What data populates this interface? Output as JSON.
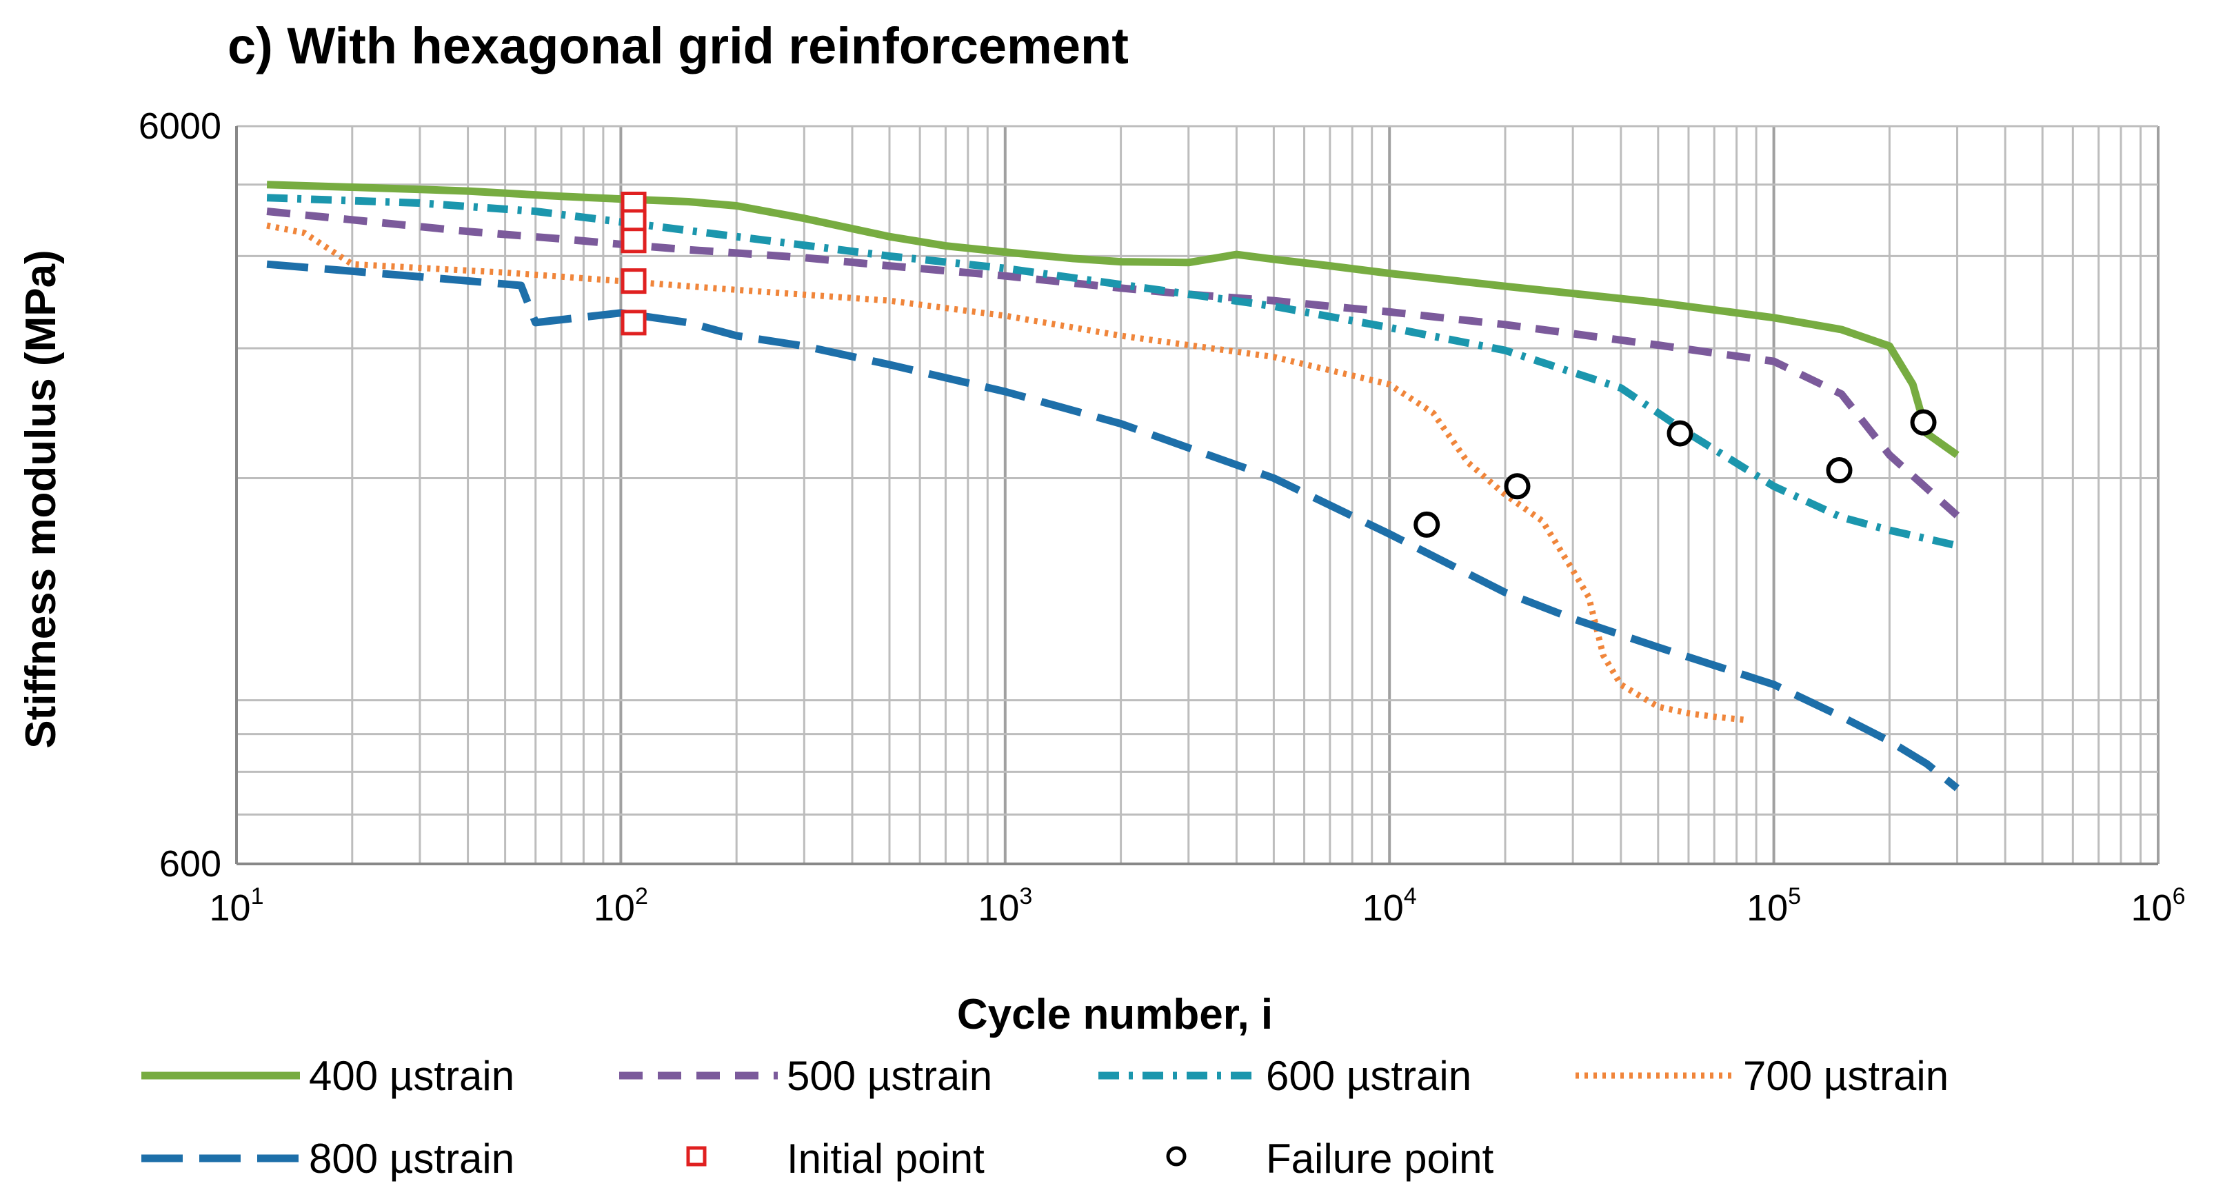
{
  "chart_data": {
    "type": "line",
    "title": "c) With hexagonal grid reinforcement",
    "xlabel": "Cycle number, i",
    "ylabel": "Stiffness modulus (MPa)",
    "xscale": "log",
    "yscale": "log",
    "xlim": [
      10,
      1000000
    ],
    "ylim": [
      600,
      6000
    ],
    "grid": true,
    "x_ticks": [
      {
        "base": "10",
        "exp": "1",
        "value": 10
      },
      {
        "base": "10",
        "exp": "2",
        "value": 100
      },
      {
        "base": "10",
        "exp": "3",
        "value": 1000
      },
      {
        "base": "10",
        "exp": "4",
        "value": 10000
      },
      {
        "base": "10",
        "exp": "5",
        "value": 100000
      },
      {
        "base": "10",
        "exp": "6",
        "value": 1000000
      }
    ],
    "y_ticks": [
      {
        "label": "600",
        "value": 600
      },
      {
        "label": "6000",
        "value": 6000
      }
    ],
    "legend_position": "bottom",
    "series": [
      {
        "name": "400 µstrain",
        "color": "#77ac41",
        "dash": "solid",
        "x": [
          12,
          20,
          40,
          70,
          100,
          150,
          200,
          300,
          500,
          700,
          1000,
          1500,
          2000,
          3000,
          4000,
          5000,
          7000,
          10000,
          20000,
          50000,
          100000,
          150000,
          200000,
          230000,
          250000,
          300000
        ],
        "y": [
          5000,
          4960,
          4900,
          4820,
          4780,
          4740,
          4680,
          4500,
          4250,
          4130,
          4050,
          3970,
          3930,
          3920,
          4020,
          3960,
          3880,
          3790,
          3640,
          3460,
          3300,
          3180,
          3020,
          2680,
          2300,
          2150
        ]
      },
      {
        "name": "500 µstrain",
        "color": "#7b5a9b",
        "dash": "dash",
        "x": [
          12,
          20,
          40,
          70,
          100,
          150,
          300,
          500,
          1000,
          2000,
          3000,
          5000,
          7000,
          10000,
          20000,
          50000,
          100000,
          150000,
          200000,
          300000
        ],
        "y": [
          4600,
          4480,
          4320,
          4220,
          4150,
          4080,
          3980,
          3880,
          3760,
          3620,
          3550,
          3480,
          3420,
          3360,
          3230,
          3030,
          2880,
          2600,
          2150,
          1780
        ]
      },
      {
        "name": "600 µstrain",
        "color": "#1b96ad",
        "dash": "dash-dot",
        "x": [
          12,
          30,
          60,
          100,
          200,
          500,
          1000,
          2000,
          5000,
          10000,
          20000,
          40000,
          60000,
          100000,
          150000,
          200000,
          300000
        ],
        "y": [
          4800,
          4720,
          4600,
          4450,
          4250,
          4000,
          3850,
          3660,
          3420,
          3200,
          2980,
          2650,
          2300,
          1950,
          1770,
          1700,
          1620
        ]
      },
      {
        "name": "700 µstrain",
        "color": "#f0853a",
        "dash": "dot",
        "x": [
          12,
          15,
          20,
          50,
          100,
          200,
          500,
          1000,
          2000,
          5000,
          10000,
          13000,
          16000,
          20000,
          25000,
          30000,
          33000,
          36000,
          40000,
          50000,
          60000,
          70000,
          85000
        ],
        "y": [
          4400,
          4300,
          3900,
          3800,
          3700,
          3600,
          3480,
          3320,
          3120,
          2920,
          2680,
          2450,
          2100,
          1900,
          1750,
          1500,
          1380,
          1150,
          1050,
          980,
          960,
          950,
          940
        ]
      },
      {
        "name": "800 µstrain",
        "color": "#1d6fa9",
        "dash": "longdash",
        "x": [
          12,
          30,
          55,
          60,
          100,
          150,
          200,
          300,
          500,
          1000,
          2000,
          5000,
          10000,
          20000,
          30000,
          50000,
          100000,
          150000,
          200000,
          250000,
          300000
        ],
        "y": [
          3900,
          3750,
          3650,
          3250,
          3350,
          3250,
          3120,
          3020,
          2850,
          2620,
          2370,
          2000,
          1680,
          1400,
          1290,
          1180,
          1050,
          950,
          880,
          820,
          760
        ]
      }
    ],
    "initial_points": {
      "name": "Initial point",
      "color": "#e02020",
      "x": [
        108,
        108,
        108,
        108,
        108
      ],
      "y": [
        4700,
        4450,
        4200,
        3700,
        3250
      ]
    },
    "failure_points": {
      "name": "Failure point",
      "color": "#000000",
      "x": [
        12500,
        21500,
        57000,
        148000,
        245000
      ],
      "y": [
        1730,
        1950,
        2300,
        2050,
        2380
      ]
    }
  }
}
